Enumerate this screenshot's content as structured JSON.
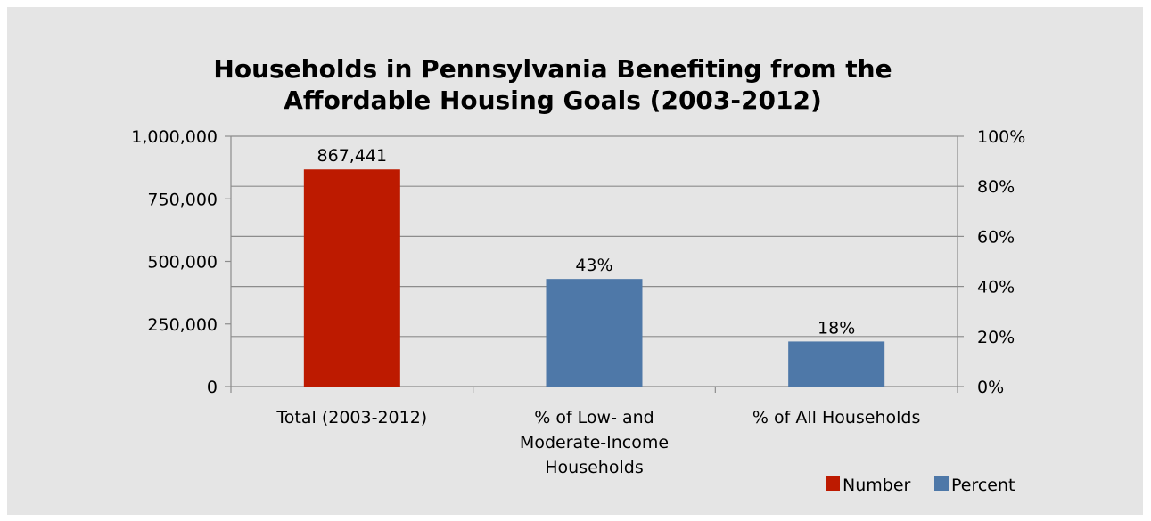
{
  "chart_data": {
    "type": "bar",
    "title": "Households in Pennsylvania Benefiting from the Affordable Housing Goals (2003-2012)",
    "title_lines": [
      "Households in Pennsylvania Benefiting from the",
      "Affordable Housing Goals    (2003-2012)"
    ],
    "categories": [
      [
        "Total (2003-2012)"
      ],
      [
        "% of Low- and",
        "Moderate-Income",
        "Households"
      ],
      [
        "% of All Households"
      ]
    ],
    "series": [
      {
        "name": "Number",
        "axis": "left",
        "color": "#bd1a00",
        "values": [
          867441,
          null,
          null
        ],
        "labels": [
          "867,441",
          "",
          ""
        ]
      },
      {
        "name": "Percent",
        "axis": "right",
        "color": "#4e78a8",
        "values": [
          null,
          43,
          18
        ],
        "labels": [
          "",
          "43%",
          "18%"
        ]
      }
    ],
    "y_left": {
      "ylim": [
        0,
        1000000
      ],
      "ticks": [
        0,
        250000,
        500000,
        750000,
        1000000
      ],
      "tick_labels": [
        "0",
        "250,000",
        "500,000",
        "750,000",
        "1,000,000"
      ]
    },
    "y_right": {
      "ylim": [
        0,
        100
      ],
      "ticks": [
        0,
        20,
        40,
        60,
        80,
        100
      ],
      "tick_labels": [
        "0%",
        "20%",
        "40%",
        "60%",
        "80%",
        "100%"
      ]
    },
    "grid": true,
    "legend": "bottom-right",
    "colors": {
      "background": "#e5e5e5",
      "grid": "#8c8c8c"
    }
  }
}
